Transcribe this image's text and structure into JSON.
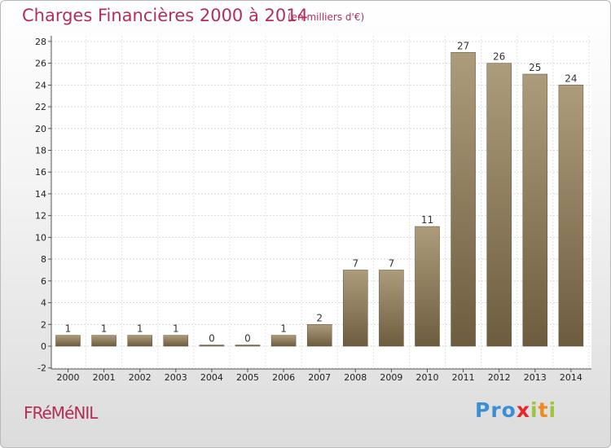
{
  "header": {
    "title": "Charges Financières 2000 à 2014",
    "subtitle": "(en milliers d'€)"
  },
  "footer": {
    "commune": "FRéMéNIL",
    "logo_letters": [
      "P",
      "r",
      "o",
      "x",
      "i",
      "t",
      "i"
    ],
    "logo_colors": [
      "#3b8ed8",
      "#3b8ed8",
      "#3b8ed8",
      "#e8262a",
      "#9bc53d",
      "#f08a1e",
      "#9bc53d"
    ]
  },
  "chart_data": {
    "type": "bar",
    "title": "Charges Financières 2000 à 2014",
    "subtitle": "(en milliers d'€)",
    "categories": [
      "2000",
      "2001",
      "2002",
      "2003",
      "2004",
      "2005",
      "2006",
      "2007",
      "2008",
      "2009",
      "2010",
      "2011",
      "2012",
      "2013",
      "2014"
    ],
    "values": [
      1,
      1,
      1,
      1,
      0,
      0,
      1,
      2,
      7,
      7,
      11,
      27,
      26,
      25,
      24
    ],
    "data_labels": [
      "1",
      "1",
      "1",
      "1",
      "0",
      "0",
      "1",
      "2",
      "7",
      "7",
      "11",
      "27",
      "26",
      "25",
      "24"
    ],
    "ylim": [
      -2,
      28
    ],
    "yticks": [
      -2,
      0,
      2,
      4,
      6,
      8,
      10,
      12,
      14,
      16,
      18,
      20,
      22,
      24,
      26,
      28
    ],
    "grid": true,
    "legend": "none",
    "bar_color": "#8a7858"
  }
}
